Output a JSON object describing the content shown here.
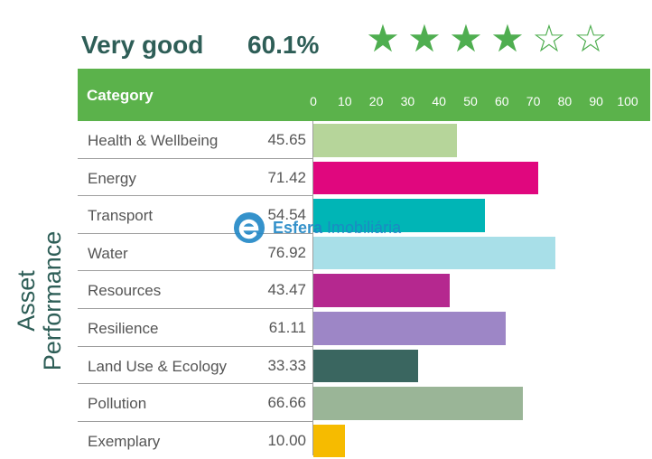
{
  "rating": {
    "label": "Very good",
    "percentage": "60.1%",
    "stars_filled": 4,
    "stars_total": 6
  },
  "side_title": {
    "line1": "Asset",
    "line2": "Performance"
  },
  "watermark": {
    "brand": "Esfera",
    "suffix": " Imobiliária"
  },
  "colors": {
    "header_bg": "#5bb24b",
    "title_text": "#2e5e57",
    "star": "#4fae50"
  },
  "chart_data": {
    "type": "bar",
    "orientation": "horizontal",
    "title": "",
    "header_label": "Category",
    "xlim": [
      0,
      100
    ],
    "x_ticks": [
      "0",
      "10",
      "20",
      "30",
      "40",
      "50",
      "60",
      "70",
      "80",
      "90",
      "100"
    ],
    "categories": [
      "Health & Wellbeing",
      "Energy",
      "Transport",
      "Water",
      "Resources",
      "Resilience",
      "Land Use & Ecology",
      "Pollution",
      "Exemplary"
    ],
    "values": [
      45.65,
      71.42,
      54.54,
      76.92,
      43.47,
      61.11,
      33.33,
      66.66,
      10.0
    ],
    "value_labels": [
      "45.65",
      "71.42",
      "54.54",
      "76.92",
      "43.47",
      "61.11",
      "33.33",
      "66.66",
      "10.00"
    ],
    "bar_colors": [
      "#b6d59a",
      "#e0077e",
      "#00b5b6",
      "#a8dfe8",
      "#b5288f",
      "#9d86c6",
      "#3a6660",
      "#9ab597",
      "#f6bb00"
    ]
  }
}
